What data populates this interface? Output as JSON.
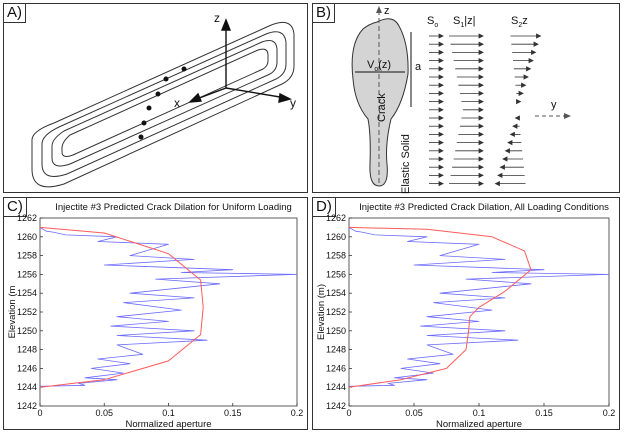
{
  "panels": {
    "a": {
      "tag": "A)"
    },
    "b": {
      "tag": "B)"
    },
    "c": {
      "tag": "C)"
    },
    "d": {
      "tag": "D)"
    }
  },
  "panel_a": {
    "axis_x": "x",
    "axis_y": "y",
    "axis_z": "z"
  },
  "panel_b": {
    "axis_z": "z",
    "axis_y": "y",
    "label_s0": "S",
    "label_s0_sub": "o",
    "label_s1": "S",
    "label_s1_sub": "1",
    "label_s1_tail": "|z|",
    "label_s2": "S",
    "label_s2_sub": "2",
    "label_s2_tail": "z",
    "label_v": "V",
    "label_v_sub": "o",
    "label_v_tail": "(z)",
    "label_a": "a",
    "label_crack": "Crack",
    "label_solid": "Elastic Solid"
  },
  "chart_data": [
    {
      "type": "line",
      "title": "Injectite #3 Predicted Crack Dilation for Uniform Loading",
      "xlabel": "Normalized aperture",
      "ylabel": "Elevation (m",
      "xlim": [
        0,
        0.2
      ],
      "ylim": [
        1242,
        1262
      ],
      "xticks": [
        "0",
        "0.05",
        "0.1",
        "0.15",
        "0.2"
      ],
      "yticks": [
        "1242",
        "1244",
        "1246",
        "1248",
        "1250",
        "1252",
        "1254",
        "1256",
        "1258",
        "1260",
        "1262"
      ],
      "series": [
        {
          "color": "#6b6bff",
          "x": [
            0.0,
            0.005,
            0.01,
            0.02,
            0.06,
            0.045,
            0.1,
            0.07,
            0.12,
            0.05,
            0.15,
            0.11,
            0.2,
            0.09,
            0.14,
            0.07,
            0.12,
            0.065,
            0.11,
            0.06,
            0.1,
            0.055,
            0.12,
            0.06,
            0.13,
            0.06,
            0.08,
            0.045,
            0.07,
            0.04,
            0.065,
            0.035,
            0.06,
            0.03,
            0.035,
            0.0
          ],
          "y": [
            1261,
            1260.6,
            1260.5,
            1260.2,
            1260,
            1259.5,
            1259.2,
            1258,
            1257.6,
            1257,
            1256.5,
            1256.2,
            1256,
            1255.5,
            1255,
            1254,
            1253.5,
            1253,
            1252.2,
            1251.5,
            1251,
            1250.5,
            1250,
            1249.5,
            1249,
            1248.5,
            1247.5,
            1247,
            1246.5,
            1246,
            1245.5,
            1245,
            1244.8,
            1244.4,
            1244.2,
            1244.1
          ]
        },
        {
          "color": "#ff5b5b",
          "x": [
            0.0,
            0.05,
            0.1,
            0.125,
            0.127,
            0.125,
            0.1,
            0.05,
            0.0
          ],
          "y": [
            1261,
            1260.4,
            1258.2,
            1255.4,
            1252.5,
            1249.6,
            1246.8,
            1244.8,
            1244
          ]
        }
      ]
    },
    {
      "type": "line",
      "title": "Injectite #3 Predicted Crack Dilation, All Loading Conditions",
      "xlabel": "Normalized aperture",
      "ylabel": "Elevation (m)",
      "xlim": [
        0,
        0.2
      ],
      "ylim": [
        1242,
        1262
      ],
      "xticks": [
        "0",
        "0.05",
        "0.1",
        "0.15",
        "0.2"
      ],
      "yticks": [
        "1242",
        "1244",
        "1246",
        "1248",
        "1250",
        "1252",
        "1254",
        "1256",
        "1258",
        "1260",
        "1262"
      ],
      "series": [
        {
          "color": "#6b6bff",
          "x": [
            0.0,
            0.005,
            0.01,
            0.02,
            0.06,
            0.045,
            0.1,
            0.07,
            0.12,
            0.05,
            0.15,
            0.11,
            0.2,
            0.09,
            0.14,
            0.07,
            0.12,
            0.065,
            0.11,
            0.06,
            0.1,
            0.055,
            0.12,
            0.06,
            0.13,
            0.06,
            0.08,
            0.045,
            0.07,
            0.04,
            0.065,
            0.035,
            0.06,
            0.03,
            0.035,
            0.0
          ],
          "y": [
            1261,
            1260.6,
            1260.5,
            1260.2,
            1260,
            1259.5,
            1259.2,
            1258,
            1257.6,
            1257,
            1256.5,
            1256.2,
            1256,
            1255.5,
            1255,
            1254,
            1253.5,
            1253,
            1252.2,
            1251.5,
            1251,
            1250.5,
            1250,
            1249.5,
            1249,
            1248.5,
            1247.5,
            1247,
            1246.5,
            1246,
            1245.5,
            1245,
            1244.8,
            1244.4,
            1244.2,
            1244.1
          ]
        },
        {
          "color": "#ff5b5b",
          "x": [
            0.0,
            0.06,
            0.11,
            0.135,
            0.14,
            0.12,
            0.1,
            0.093,
            0.092,
            0.09,
            0.075,
            0.04,
            0.0
          ],
          "y": [
            1261,
            1260.8,
            1260,
            1258.5,
            1256.5,
            1254.2,
            1252.5,
            1251.5,
            1250,
            1248,
            1246,
            1244.8,
            1244
          ]
        }
      ]
    }
  ]
}
